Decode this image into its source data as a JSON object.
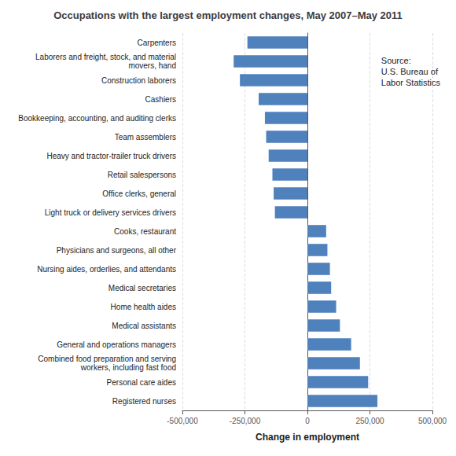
{
  "chart_data": {
    "type": "bar",
    "orientation": "horizontal",
    "title": "Occupations with the largest employment changes, May 2007–May 2011",
    "categories": [
      "Registered nurses",
      "Personal care aides",
      "Combined food preparation and serving\nworkers, including fast food",
      "General and operations managers",
      "Medical assistants",
      "Home health aides",
      "Medical secretaries",
      "Nursing aides, orderlies, and attendants",
      "Physicians and surgeons, all other",
      "Cooks, restaurant",
      "Light truck or delivery services drivers",
      "Office clerks, general",
      "Retail salespersons",
      "Heavy and tractor-trailer truck drivers",
      "Team assemblers",
      "Bookkeeping, accounting, and auditing clerks",
      "Cashiers",
      "Construction laborers",
      "Laborers and freight, stock, and material\nmovers, hand",
      "Carpenters"
    ],
    "values": [
      280000,
      243000,
      210000,
      175000,
      130000,
      115000,
      95000,
      90000,
      80000,
      75000,
      -130000,
      -135000,
      -140000,
      -155000,
      -165000,
      -170000,
      -195000,
      -270000,
      -295000,
      -240000
    ],
    "color": "#4F81BD",
    "xlabel": "Change in employment",
    "xlim": [
      -500000,
      500000
    ],
    "xticks": [
      {
        "value": -500000,
        "label": "-500,000"
      },
      {
        "value": -250000,
        "label": "-250,000"
      },
      0,
      {
        "value": 250000,
        "label": "250,000"
      },
      {
        "value": 500000,
        "label": "500,000"
      }
    ],
    "grid": true,
    "annotations": [
      "Source:\nU.S. Bureau of\nLabor Statistics"
    ]
  }
}
